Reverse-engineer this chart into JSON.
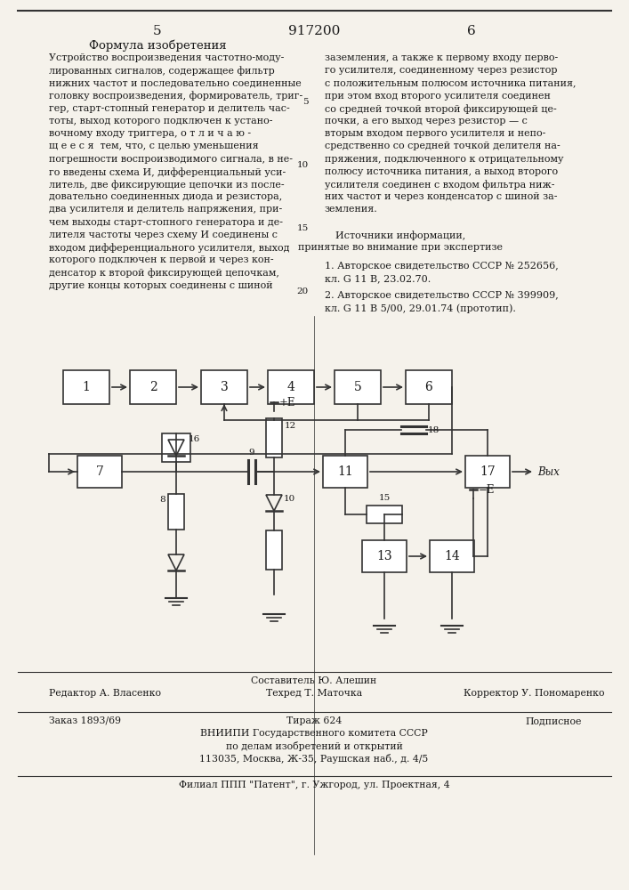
{
  "page_number_left": "5",
  "page_number_center": "917200",
  "page_number_right": "6",
  "section_title": "Формула изобретения",
  "left_column_text": [
    "Устройство воспроизведения частотно-моду-",
    "лированных сигналов, содержащее фильтр",
    "нижних частот и последовательно соединенные",
    "головку воспроизведения, формирователь, триг-",
    "гер, старт-стопный генератор и делитель час-",
    "тоты, выход которого подключен к устано-",
    "вочному входу триггера, о т л и ч а ю -",
    "щ е е с я  тем, что, с целью уменьшения",
    "погрешности воспроизводимого сигнала, в не-",
    "го введены схема И, дифференциальный уси-",
    "литель, две фиксирующие цепочки из после-",
    "довательно соединенных диода и резистора,",
    "два усилителя и делитель напряжения, при-",
    "чем выходы старт-стопного генератора и де-",
    "лителя частоты через схему И соединены с",
    "входом дифференциального усилителя, выход",
    "которого подключен к первой и через кон-",
    "денсатор к второй фиксирующей цепочкам,",
    "другие концы которых соединены с шиной"
  ],
  "right_column_text": [
    "заземления, а также к первому входу перво-",
    "го усилителя, соединенному через резистор",
    "с положительным полюсом источника питания,",
    "при этом вход второго усилителя соединен",
    "со средней точкой второй фиксирующей це-",
    "почки, а его выход через резистор — с",
    "вторым входом первого усилителя и непо-",
    "средственно со средней точкой делителя на-",
    "пряжения, подключенного к отрицательному",
    "полюсу источника питания, а выход второго",
    "усилителя соединен с входом фильтра ниж-",
    "них частот и через конденсатор с шиной за-",
    "земления."
  ],
  "sources_title": "Источники информации,",
  "sources_subtitle": "принятые во внимание при экспертизе",
  "source1": "1. Авторское свидетельство СССР № 252656,",
  "source1b": "кл. G 11 В, 23.02.70.",
  "source2": "2. Авторское свидетельство СССР № 399909,",
  "source2b": "кл. G 11 В 5/00, 29.01.74 (прототип).",
  "editor_line": "Редактор А. Власенко",
  "composer_line": "Составитель Ю. Алешин",
  "techred_line": "Техред Т. Маточка",
  "corrector_line": "Корректор У. Пономаренко",
  "order_line": "Заказ 1893/69",
  "tirazh_line": "Тираж 624",
  "podpisnoe_line": "Подписное",
  "vniip1": "ВНИИПИ Государственного комитета СССР",
  "vniip2": "по делам изобретений и открытий",
  "vniip3": "113035, Москва, Ж-35, Раушская наб., д. 4/5",
  "filial": "Филиал ППП \"Патент\", г. Ужгород, ул. Проектная, 4",
  "bg_color": "#f5f2eb",
  "text_color": "#1a1a1a",
  "line_color": "#333333"
}
